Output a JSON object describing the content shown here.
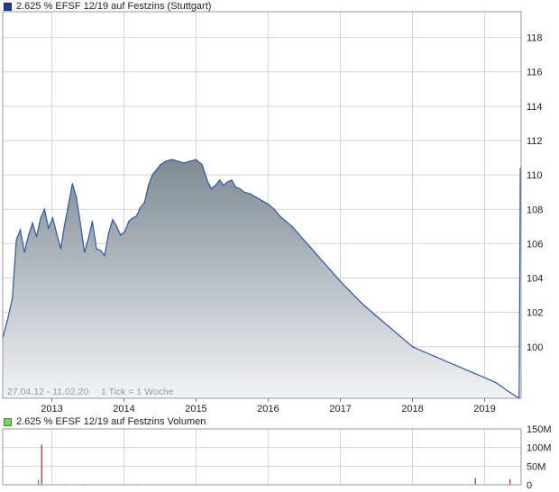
{
  "legend_price": "2.625 % EFSF 12/19 auf Festzins (Stuttgart)",
  "legend_volume": "2.625 % EFSF 12/19 auf Festzins Volumen",
  "info_text": "27.04.12 - 11.02.20",
  "tick_text": "1 Tick = 1 Woche",
  "colors": {
    "line": "#2a57a8",
    "fill_top": "#7f8a93",
    "fill_bottom": "#f2f3f5",
    "volume_up": "#2e9b2e",
    "volume_down": "#d11a1a",
    "grid": "#d4d4d4"
  },
  "chart_data": [
    {
      "type": "area",
      "series": [
        {
          "x": [
            "2012-04-27",
            "2012-05-20",
            "2012-06-15",
            "2012-07-05",
            "2012-07-25",
            "2012-08-15",
            "2012-09-05",
            "2012-09-25",
            "2012-10-15",
            "2012-11-05",
            "2012-11-25",
            "2012-12-15",
            "2013-01-05",
            "2013-01-25",
            "2013-02-15",
            "2013-03-05",
            "2013-03-25",
            "2013-04-15",
            "2013-05-05",
            "2013-05-25",
            "2013-06-15",
            "2013-07-05",
            "2013-07-25",
            "2013-08-15",
            "2013-09-05",
            "2013-09-25",
            "2013-10-15",
            "2013-11-05",
            "2013-11-25",
            "2013-12-15",
            "2014-01-05",
            "2014-01-25",
            "2014-02-15",
            "2014-03-05",
            "2014-03-25",
            "2014-04-15",
            "2014-05-05",
            "2014-05-25",
            "2014-06-15",
            "2014-07-05",
            "2014-08-01",
            "2014-09-01",
            "2014-10-01",
            "2014-11-01",
            "2014-12-01",
            "2015-01-01",
            "2015-02-01",
            "2015-03-01",
            "2015-03-20",
            "2015-04-10",
            "2015-05-01",
            "2015-05-20",
            "2015-06-10",
            "2015-07-01",
            "2015-07-20",
            "2015-08-10",
            "2015-09-01",
            "2015-10-01",
            "2015-11-01",
            "2015-12-01",
            "2016-01-01",
            "2016-02-01",
            "2016-03-01",
            "2016-04-01",
            "2016-05-01",
            "2016-06-01",
            "2016-07-01",
            "2016-08-01",
            "2016-09-01",
            "2016-10-01",
            "2016-11-01",
            "2016-12-01",
            "2017-01-01",
            "2017-03-01",
            "2017-05-01",
            "2017-07-01",
            "2017-09-01",
            "2017-11-01",
            "2018-01-01",
            "2018-03-01",
            "2018-05-01",
            "2018-07-01",
            "2018-09-01",
            "2018-11-01",
            "2019-01-01",
            "2019-03-01",
            "2019-05-01",
            "2019-06-25",
            "2019-06-28",
            "2019-07-01"
          ],
          "y": [
            100.5,
            101.5,
            102.8,
            106.2,
            106.8,
            105.5,
            106.5,
            107.2,
            106.4,
            107.5,
            108.0,
            106.9,
            107.5,
            106.6,
            105.7,
            107.0,
            108.2,
            109.5,
            108.7,
            107.2,
            105.5,
            106.3,
            107.3,
            105.7,
            105.6,
            105.3,
            106.6,
            107.4,
            107.0,
            106.5,
            106.7,
            107.3,
            107.5,
            107.6,
            108.1,
            108.4,
            109.4,
            110.0,
            110.3,
            110.6,
            110.8,
            110.9,
            110.8,
            110.7,
            110.8,
            110.9,
            110.6,
            109.6,
            109.2,
            109.4,
            109.7,
            109.4,
            109.6,
            109.7,
            109.3,
            109.2,
            109.0,
            108.9,
            108.7,
            108.5,
            108.3,
            108.0,
            107.6,
            107.3,
            107.0,
            106.6,
            106.2,
            105.8,
            105.4,
            105.0,
            104.6,
            104.2,
            103.8,
            103.1,
            102.4,
            101.8,
            101.2,
            100.6,
            100.0,
            99.7,
            99.4,
            99.1,
            98.8,
            98.5,
            98.2,
            97.9,
            97.4,
            97.0,
            104.0,
            110.4
          ]
        }
      ],
      "x_ticks": [
        "2013",
        "2014",
        "2015",
        "2016",
        "2017",
        "2018",
        "2019"
      ],
      "y_ticks": [
        "100",
        "102",
        "104",
        "106",
        "108",
        "110",
        "112",
        "114",
        "116",
        "118"
      ],
      "ylim": [
        97.0,
        119.5
      ],
      "grid": true
    },
    {
      "type": "bar",
      "series": [
        {
          "x": [
            "2012-09-15",
            "2012-10-05",
            "2012-10-25",
            "2012-11-10",
            "2012-12-05",
            "2013-01-10",
            "2013-02-10",
            "2013-03-10",
            "2013-04-10",
            "2013-05-10",
            "2013-06-10",
            "2013-07-10",
            "2013-09-10",
            "2013-11-10",
            "2014-01-10",
            "2014-03-10",
            "2014-06-10",
            "2014-09-10",
            "2014-12-10",
            "2015-04-10",
            "2015-08-10",
            "2016-01-10",
            "2016-06-10",
            "2017-01-10",
            "2017-06-10",
            "2018-01-10",
            "2018-06-10",
            "2018-11-15",
            "2019-05-10"
          ],
          "values": [
            1.5,
            0.8,
            13,
            108,
            2,
            1,
            1.5,
            2,
            1,
            1.2,
            2,
            1,
            0.8,
            1.5,
            1,
            2,
            1.2,
            1.5,
            1,
            0.8,
            1,
            0.8,
            1,
            0.8,
            0.6,
            0.8,
            0.6,
            18,
            15
          ],
          "direction": [
            "up",
            "up",
            "up",
            "down",
            "up",
            "up",
            "up",
            "up",
            "up",
            "up",
            "up",
            "up",
            "up",
            "up",
            "up",
            "up",
            "up",
            "up",
            "up",
            "up",
            "up",
            "up",
            "up",
            "up",
            "up",
            "up",
            "up",
            "down",
            "down"
          ]
        }
      ],
      "y_ticks": [
        "0",
        "50M",
        "100M",
        "150M"
      ],
      "ylim": [
        0,
        150
      ],
      "grid": true
    }
  ]
}
